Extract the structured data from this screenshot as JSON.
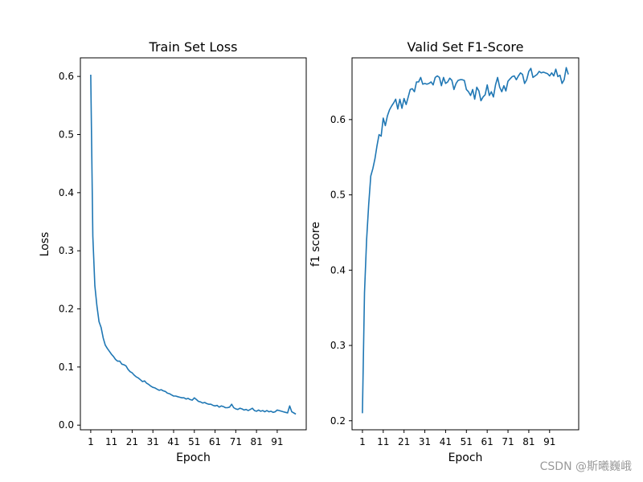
{
  "watermark": "CSDN @斯曦巍峨",
  "chart_data": [
    {
      "type": "line",
      "title": "Train Set Loss",
      "xlabel": "Epoch",
      "ylabel": "Loss",
      "x_ticks": [
        1,
        11,
        21,
        31,
        41,
        51,
        61,
        71,
        81,
        91
      ],
      "y_ticks": [
        0.0,
        0.1,
        0.2,
        0.3,
        0.4,
        0.5,
        0.6
      ],
      "xlim": [
        -4,
        105
      ],
      "ylim": [
        -0.008,
        0.632
      ],
      "grid": false,
      "color": "#1f77b4",
      "series": [
        {
          "x": [
            1,
            2,
            3,
            4,
            5,
            6,
            7,
            8,
            9,
            10,
            11,
            12,
            13,
            14,
            15,
            16,
            17,
            18,
            19,
            20,
            21,
            22,
            23,
            24,
            25,
            26,
            27,
            28,
            29,
            30,
            31,
            32,
            33,
            34,
            35,
            36,
            37,
            38,
            39,
            40,
            41,
            42,
            43,
            44,
            45,
            46,
            47,
            48,
            49,
            50,
            51,
            52,
            53,
            54,
            55,
            56,
            57,
            58,
            59,
            60,
            61,
            62,
            63,
            64,
            65,
            66,
            67,
            68,
            69,
            70,
            71,
            72,
            73,
            74,
            75,
            76,
            77,
            78,
            79,
            80,
            81,
            82,
            83,
            84,
            85,
            86,
            87,
            88,
            89,
            90,
            91,
            92,
            93,
            94,
            95,
            96,
            97,
            98,
            99,
            100
          ],
          "y": [
            0.603,
            0.325,
            0.24,
            0.205,
            0.178,
            0.168,
            0.15,
            0.138,
            0.132,
            0.127,
            0.122,
            0.118,
            0.113,
            0.11,
            0.11,
            0.105,
            0.104,
            0.102,
            0.096,
            0.092,
            0.09,
            0.086,
            0.083,
            0.081,
            0.078,
            0.075,
            0.076,
            0.072,
            0.07,
            0.067,
            0.065,
            0.064,
            0.062,
            0.06,
            0.061,
            0.059,
            0.058,
            0.055,
            0.054,
            0.052,
            0.05,
            0.05,
            0.049,
            0.048,
            0.047,
            0.047,
            0.045,
            0.046,
            0.044,
            0.043,
            0.047,
            0.044,
            0.041,
            0.04,
            0.038,
            0.039,
            0.037,
            0.036,
            0.036,
            0.034,
            0.033,
            0.034,
            0.031,
            0.033,
            0.032,
            0.03,
            0.03,
            0.031,
            0.036,
            0.03,
            0.028,
            0.027,
            0.029,
            0.028,
            0.026,
            0.027,
            0.025,
            0.027,
            0.029,
            0.025,
            0.024,
            0.026,
            0.024,
            0.025,
            0.023,
            0.025,
            0.023,
            0.024,
            0.022,
            0.023,
            0.026,
            0.025,
            0.024,
            0.023,
            0.022,
            0.021,
            0.033,
            0.023,
            0.021,
            0.019
          ]
        }
      ]
    },
    {
      "type": "line",
      "title": "Valid Set F1-Score",
      "xlabel": "Epoch",
      "ylabel": "f1 score",
      "x_ticks": [
        1,
        11,
        21,
        31,
        41,
        51,
        61,
        71,
        81,
        91
      ],
      "y_ticks": [
        0.2,
        0.3,
        0.4,
        0.5,
        0.6
      ],
      "xlim": [
        -4,
        105
      ],
      "ylim": [
        0.188,
        0.682
      ],
      "grid": false,
      "color": "#1f77b4",
      "series": [
        {
          "x": [
            1,
            2,
            3,
            4,
            5,
            6,
            7,
            8,
            9,
            10,
            11,
            12,
            13,
            14,
            15,
            16,
            17,
            18,
            19,
            20,
            21,
            22,
            23,
            24,
            25,
            26,
            27,
            28,
            29,
            30,
            31,
            32,
            33,
            34,
            35,
            36,
            37,
            38,
            39,
            40,
            41,
            42,
            43,
            44,
            45,
            46,
            47,
            48,
            49,
            50,
            51,
            52,
            53,
            54,
            55,
            56,
            57,
            58,
            59,
            60,
            61,
            62,
            63,
            64,
            65,
            66,
            67,
            68,
            69,
            70,
            71,
            72,
            73,
            74,
            75,
            76,
            77,
            78,
            79,
            80,
            81,
            82,
            83,
            84,
            85,
            86,
            87,
            88,
            89,
            90,
            91,
            92,
            93,
            94,
            95,
            96,
            97,
            98,
            99,
            100
          ],
          "y": [
            0.21,
            0.37,
            0.44,
            0.487,
            0.525,
            0.535,
            0.548,
            0.565,
            0.58,
            0.578,
            0.602,
            0.592,
            0.605,
            0.613,
            0.618,
            0.622,
            0.627,
            0.614,
            0.627,
            0.615,
            0.628,
            0.62,
            0.63,
            0.64,
            0.641,
            0.637,
            0.65,
            0.65,
            0.656,
            0.647,
            0.648,
            0.647,
            0.648,
            0.65,
            0.646,
            0.656,
            0.658,
            0.656,
            0.645,
            0.656,
            0.648,
            0.65,
            0.655,
            0.652,
            0.64,
            0.648,
            0.652,
            0.653,
            0.653,
            0.652,
            0.64,
            0.637,
            0.632,
            0.64,
            0.627,
            0.643,
            0.638,
            0.625,
            0.63,
            0.633,
            0.646,
            0.632,
            0.637,
            0.63,
            0.646,
            0.656,
            0.643,
            0.637,
            0.645,
            0.638,
            0.651,
            0.654,
            0.657,
            0.658,
            0.653,
            0.658,
            0.662,
            0.66,
            0.648,
            0.653,
            0.664,
            0.668,
            0.656,
            0.658,
            0.66,
            0.664,
            0.662,
            0.663,
            0.662,
            0.661,
            0.658,
            0.662,
            0.658,
            0.667,
            0.657,
            0.659,
            0.648,
            0.653,
            0.669,
            0.66
          ]
        }
      ]
    }
  ]
}
